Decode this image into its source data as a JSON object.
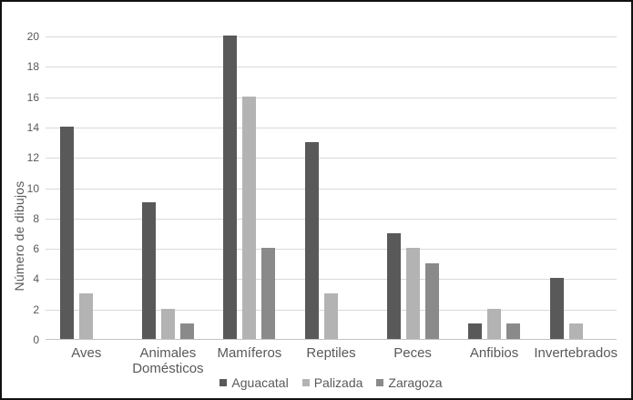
{
  "chart_data": {
    "type": "bar",
    "title": "",
    "xlabel": "",
    "ylabel": "Número de dibujos",
    "categories": [
      "Aves",
      "Animales Domésticos",
      "Mamíferos",
      "Reptiles",
      "Peces",
      "Anfibios",
      "Invertebrados"
    ],
    "series": [
      {
        "name": "Aguacatal",
        "color": "#595959",
        "values": [
          14,
          9,
          20,
          13,
          7,
          1,
          4
        ]
      },
      {
        "name": "Palizada",
        "color": "#b3b3b3",
        "values": [
          3,
          2,
          16,
          3,
          6,
          2,
          1
        ]
      },
      {
        "name": "Zaragoza",
        "color": "#8a8a8a",
        "values": [
          0,
          1,
          6,
          0,
          5,
          1,
          0
        ]
      }
    ],
    "ylim": [
      0,
      20
    ],
    "ytick_step": 2,
    "yticks": [
      0,
      2,
      4,
      6,
      8,
      10,
      12,
      14,
      16,
      18,
      20
    ],
    "grid": "horizontal",
    "legend_position": "bottom"
  },
  "colors": {
    "grid": "#d9d9d9",
    "axis_line": "#c3c3c3",
    "text": "#595959",
    "border": "#111111",
    "background": "#ffffff"
  }
}
